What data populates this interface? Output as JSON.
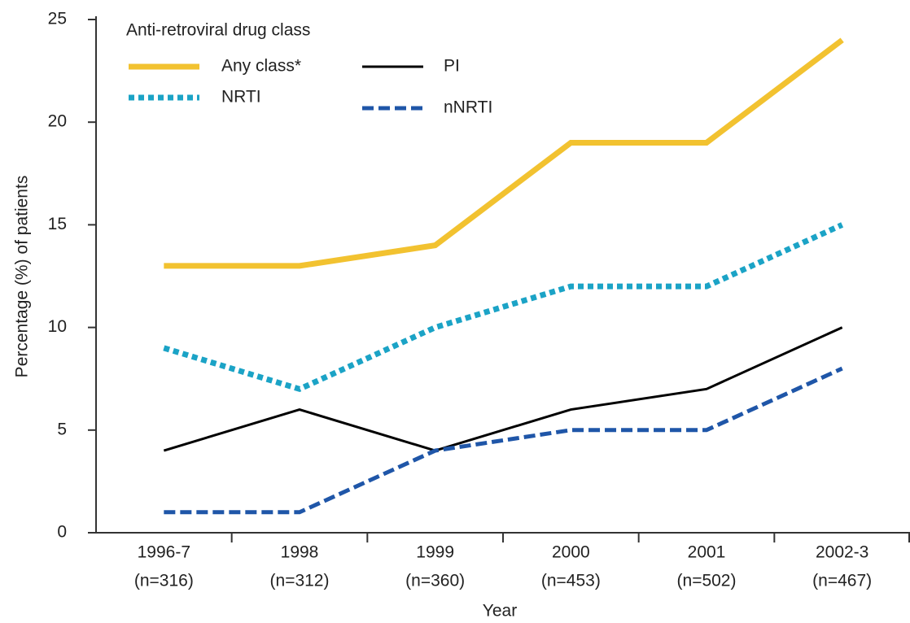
{
  "chart_data": {
    "type": "line",
    "x_label": "Year",
    "y_label": "Percentage (%) of patients",
    "legend_title": "Anti-retroviral drug class",
    "legend": "upper left",
    "categories": [
      "1996-7",
      "1998",
      "1999",
      "2000",
      "2001",
      "2002-3"
    ],
    "sample_sizes": [
      "(n=316)",
      "(n=312)",
      "(n=360)",
      "(n=453)",
      "(n=502)",
      "(n=467)"
    ],
    "series": [
      {
        "name": "Any class*",
        "color": "#f2c230",
        "style": "solid",
        "width": 7,
        "values": [
          13,
          13,
          14,
          19,
          19,
          24
        ]
      },
      {
        "name": "PI",
        "color": "#000000",
        "style": "solid",
        "width": 3,
        "values": [
          4,
          6,
          4,
          6,
          7,
          10
        ]
      },
      {
        "name": "NRTI",
        "color": "#1ba3c6",
        "style": "dotted",
        "width": 7,
        "values": [
          9,
          7,
          10,
          12,
          12,
          15
        ]
      },
      {
        "name": "nNRTI",
        "color": "#1f56a8",
        "style": "dashed",
        "width": 5,
        "values": [
          1,
          1,
          4,
          5,
          5,
          8
        ]
      }
    ],
    "ylim": [
      0,
      25
    ],
    "yticks": [
      0,
      5,
      10,
      15,
      20,
      25
    ],
    "grid": false
  }
}
